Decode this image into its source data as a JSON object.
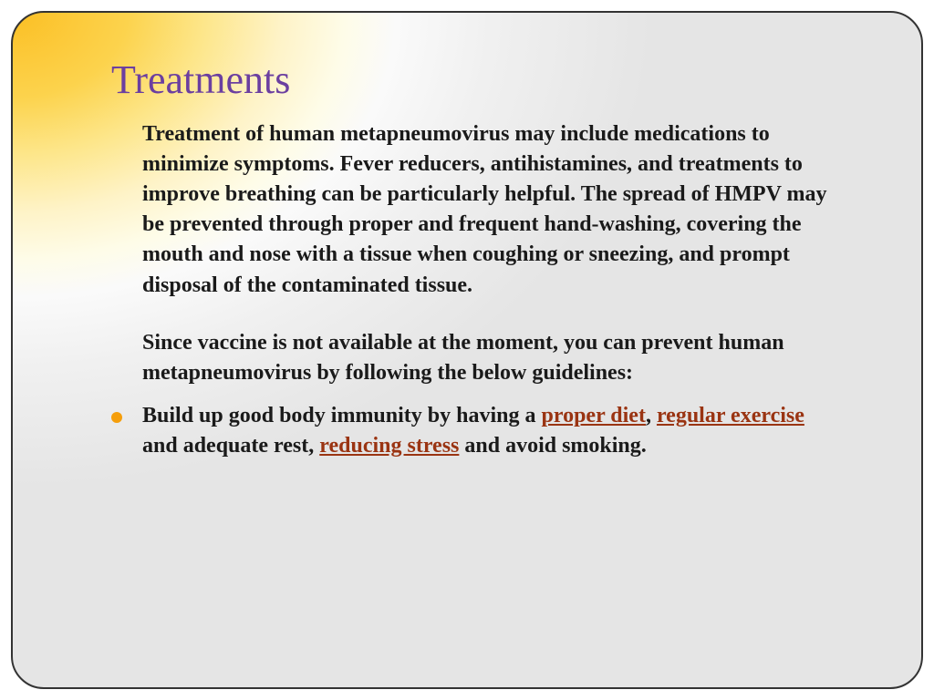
{
  "slide": {
    "title": "Treatments",
    "title_color": "#6b3fa0",
    "title_fontsize": 44,
    "body_fontsize": 24,
    "body_color": "#1a1a1a",
    "link_color": "#9a3412",
    "bullet_color": "#f59e0b",
    "border_color": "#333333",
    "border_radius": 36,
    "gradient": {
      "type": "radial",
      "from": "#fbbf24",
      "via": [
        "#fcd34d",
        "#fde68a",
        "#fef3c7",
        "#fefce8",
        "#fafafa",
        "#f0f0f0"
      ],
      "to": "#e5e5e5"
    },
    "para1": "Treatment of human metapneumovirus may include medications to minimize symptoms. Fever reducers, antihistamines, and treatments to improve breathing can be particularly helpful. The spread of HMPV may be prevented through proper and frequent hand-washing, covering the mouth and nose with a tissue when coughing or sneezing, and prompt disposal of the contaminated tissue.",
    "para2": "Since vaccine is not available at the moment, you can prevent human metapneumovirus by following the below guidelines:",
    "bullet": {
      "seg1": "Build up good body immunity by having a ",
      "link1": "proper diet",
      "seg2": ", ",
      "link2": "regular exercise",
      "seg3": " and adequate rest, ",
      "link3": "reducing stress",
      "seg4": " and avoid smoking."
    }
  }
}
